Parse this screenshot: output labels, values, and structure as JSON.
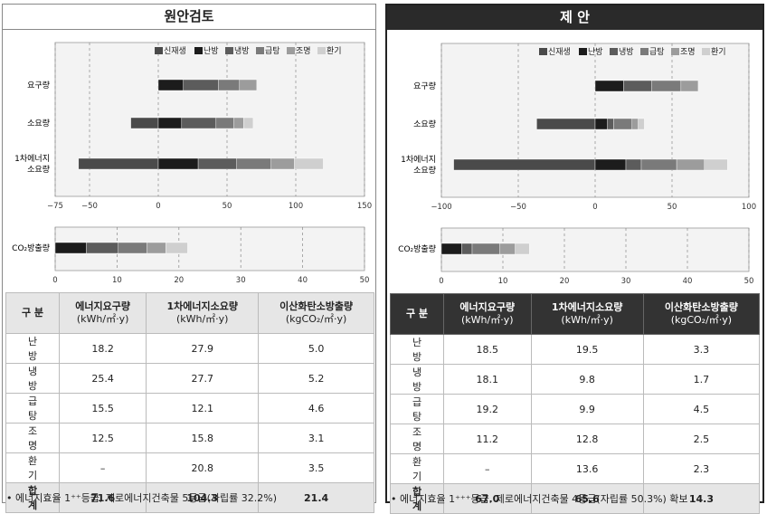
{
  "legend": [
    {
      "label": "신재생",
      "color": "#4a4a4a"
    },
    {
      "label": "난방",
      "color": "#1c1c1c"
    },
    {
      "label": "냉방",
      "color": "#5c5c5c"
    },
    {
      "label": "급탕",
      "color": "#7a7a7a"
    },
    {
      "label": "조명",
      "color": "#9c9c9c"
    },
    {
      "label": "환기",
      "color": "#cfcfcf"
    }
  ],
  "left": {
    "title": "원안검토",
    "note": "• 에너지효율 1⁺⁺등급, 제로에너지건축물 5등급(자립률 32.2%)",
    "table": {
      "headers": [
        [
          "구 분"
        ],
        [
          "에너지요구량",
          "(kWh/㎡·y)"
        ],
        [
          "1차에너지소요량",
          "(kWh/㎡·y)"
        ],
        [
          "이산화탄소방출량",
          "(kgCO₂/㎡·y)"
        ]
      ],
      "rows": [
        [
          "난 방",
          "18.2",
          "27.9",
          "5.0"
        ],
        [
          "냉 방",
          "25.4",
          "27.7",
          "5.2"
        ],
        [
          "급 탕",
          "15.5",
          "12.1",
          "4.6"
        ],
        [
          "조 명",
          "12.5",
          "15.8",
          "3.1"
        ],
        [
          "환 기",
          "–",
          "20.8",
          "3.5"
        ]
      ],
      "total": [
        "합 계",
        "71.6",
        "104.3",
        "21.4"
      ]
    }
  },
  "right": {
    "title": "제 안",
    "note": "• 에너지효율 1⁺⁺⁺등급, 제로에너지건축물 4등급(자립률 50.3%) 확보",
    "table": {
      "headers": [
        [
          "구 분"
        ],
        [
          "에너지요구량",
          "(kWh/㎡·y)"
        ],
        [
          "1차에너지소요량",
          "(kWh/㎡·y)"
        ],
        [
          "이산화탄소방출량",
          "(kgCO₂/㎡·y)"
        ]
      ],
      "rows": [
        [
          "난 방",
          "18.5",
          "19.5",
          "3.3"
        ],
        [
          "냉 방",
          "18.1",
          "9.8",
          "1.7"
        ],
        [
          "급 탕",
          "19.2",
          "9.9",
          "4.5"
        ],
        [
          "조 명",
          "11.2",
          "12.8",
          "2.5"
        ],
        [
          "환 기",
          "–",
          "13.6",
          "2.3"
        ]
      ],
      "total": [
        "합 계",
        "67.0",
        "65.6",
        "14.3"
      ]
    }
  },
  "chart_data": [
    {
      "type": "bar",
      "orientation": "horizontal",
      "stacked": true,
      "grid": true,
      "title": "원안검토",
      "categories": [
        "요구량",
        "소요량",
        "1차에너지 소요량"
      ],
      "xlim": [
        -75,
        150
      ],
      "xticks": [
        -75,
        -50,
        0,
        50,
        100,
        150
      ],
      "series": [
        {
          "name": "신재생",
          "values": [
            0,
            -20,
            -58
          ]
        },
        {
          "name": "난방",
          "values": [
            18.2,
            17,
            29
          ]
        },
        {
          "name": "냉방",
          "values": [
            25.4,
            25,
            28
          ]
        },
        {
          "name": "급탕",
          "values": [
            15.5,
            13,
            25
          ]
        },
        {
          "name": "조명",
          "values": [
            12.5,
            7,
            17
          ]
        },
        {
          "name": "환기",
          "values": [
            0,
            7,
            21
          ]
        }
      ]
    },
    {
      "type": "bar",
      "orientation": "horizontal",
      "stacked": true,
      "grid": true,
      "categories": [
        "CO₂방출량"
      ],
      "xlim": [
        0,
        50
      ],
      "xticks": [
        0,
        10,
        20,
        30,
        40,
        50
      ],
      "series": [
        {
          "name": "난방",
          "values": [
            5.0
          ]
        },
        {
          "name": "냉방",
          "values": [
            5.2
          ]
        },
        {
          "name": "급탕",
          "values": [
            4.6
          ]
        },
        {
          "name": "조명",
          "values": [
            3.1
          ]
        },
        {
          "name": "환기",
          "values": [
            3.5
          ]
        }
      ]
    },
    {
      "type": "bar",
      "orientation": "horizontal",
      "stacked": true,
      "grid": true,
      "title": "제 안",
      "categories": [
        "요구량",
        "소요량",
        "1차에너지 소요량"
      ],
      "xlim": [
        -100,
        100
      ],
      "xticks": [
        -100,
        -50,
        0,
        50,
        100
      ],
      "series": [
        {
          "name": "신재생",
          "values": [
            0,
            -38,
            -92
          ]
        },
        {
          "name": "난방",
          "values": [
            18.5,
            8,
            20
          ]
        },
        {
          "name": "냉방",
          "values": [
            18.1,
            4,
            10
          ]
        },
        {
          "name": "급탕",
          "values": [
            19.2,
            12,
            23
          ]
        },
        {
          "name": "조명",
          "values": [
            11.2,
            4,
            18
          ]
        },
        {
          "name": "환기",
          "values": [
            0,
            4,
            15
          ]
        }
      ]
    },
    {
      "type": "bar",
      "orientation": "horizontal",
      "stacked": true,
      "grid": true,
      "categories": [
        "CO₂방출량"
      ],
      "xlim": [
        0,
        50
      ],
      "xticks": [
        0,
        10,
        20,
        30,
        40,
        50
      ],
      "series": [
        {
          "name": "난방",
          "values": [
            3.3
          ]
        },
        {
          "name": "냉방",
          "values": [
            1.7
          ]
        },
        {
          "name": "급탕",
          "values": [
            4.5
          ]
        },
        {
          "name": "조명",
          "values": [
            2.5
          ]
        },
        {
          "name": "환기",
          "values": [
            2.3
          ]
        }
      ]
    }
  ]
}
